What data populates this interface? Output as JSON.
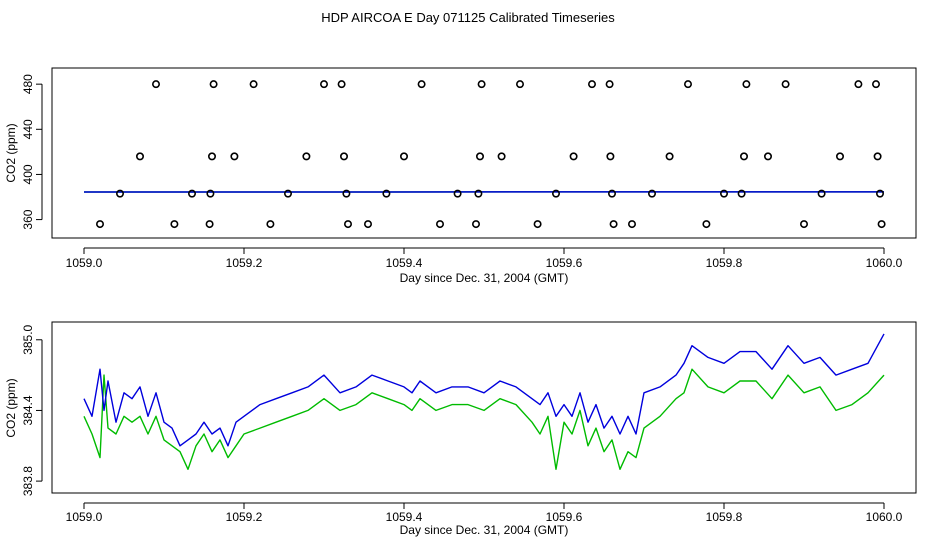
{
  "title": "HDP AIRCOA E  Day 071125  Calibrated Timeseries",
  "colors": {
    "line1": "#0000dd",
    "line2": "#00bb00",
    "points": "#000000"
  },
  "chart_data": [
    {
      "type": "scatter",
      "xlabel": "Day since Dec. 31, 2004 (GMT)",
      "ylabel": "CO2 (ppm)",
      "xlim": [
        1059.0,
        1060.0
      ],
      "ylim": [
        349,
        489
      ],
      "xticks": [
        "1059.0",
        "1059.2",
        "1059.4",
        "1059.6",
        "1059.8",
        "1060.0"
      ],
      "yticks": [
        "360",
        "400",
        "440",
        "480"
      ],
      "points": [
        [
          1059.02,
          356
        ],
        [
          1059.045,
          383
        ],
        [
          1059.07,
          416
        ],
        [
          1059.09,
          480
        ],
        [
          1059.113,
          356
        ],
        [
          1059.135,
          383
        ],
        [
          1059.157,
          356
        ],
        [
          1059.158,
          383
        ],
        [
          1059.16,
          416
        ],
        [
          1059.162,
          480
        ],
        [
          1059.188,
          416
        ],
        [
          1059.212,
          480
        ],
        [
          1059.233,
          356
        ],
        [
          1059.255,
          383
        ],
        [
          1059.278,
          416
        ],
        [
          1059.3,
          480
        ],
        [
          1059.322,
          480
        ],
        [
          1059.325,
          416
        ],
        [
          1059.328,
          383
        ],
        [
          1059.33,
          356
        ],
        [
          1059.355,
          356
        ],
        [
          1059.378,
          383
        ],
        [
          1059.4,
          416
        ],
        [
          1059.422,
          480
        ],
        [
          1059.445,
          356
        ],
        [
          1059.467,
          383
        ],
        [
          1059.49,
          356
        ],
        [
          1059.493,
          383
        ],
        [
          1059.495,
          416
        ],
        [
          1059.497,
          480
        ],
        [
          1059.522,
          416
        ],
        [
          1059.545,
          480
        ],
        [
          1059.567,
          356
        ],
        [
          1059.59,
          383
        ],
        [
          1059.612,
          416
        ],
        [
          1059.635,
          480
        ],
        [
          1059.657,
          480
        ],
        [
          1059.658,
          416
        ],
        [
          1059.66,
          383
        ],
        [
          1059.662,
          356
        ],
        [
          1059.685,
          356
        ],
        [
          1059.71,
          383
        ],
        [
          1059.732,
          416
        ],
        [
          1059.755,
          480
        ],
        [
          1059.778,
          356
        ],
        [
          1059.8,
          383
        ],
        [
          1059.822,
          383
        ],
        [
          1059.825,
          416
        ],
        [
          1059.828,
          480
        ],
        [
          1059.855,
          416
        ],
        [
          1059.877,
          480
        ],
        [
          1059.9,
          356
        ],
        [
          1059.922,
          383
        ],
        [
          1059.945,
          416
        ],
        [
          1059.968,
          480
        ],
        [
          1059.99,
          480
        ],
        [
          1059.992,
          416
        ],
        [
          1059.995,
          383
        ],
        [
          1059.997,
          356
        ]
      ],
      "series": [
        {
          "type": "line",
          "x": [
            1059.0,
            1060.0
          ],
          "y": [
            384.4,
            384.6
          ]
        }
      ]
    },
    {
      "type": "line",
      "xlabel": "Day since Dec. 31, 2004 (GMT)",
      "ylabel": "CO2 (ppm)",
      "xlim": [
        1059.0,
        1060.0
      ],
      "ylim": [
        383.75,
        385.1
      ],
      "xticks": [
        "1059.0",
        "1059.2",
        "1059.4",
        "1059.6",
        "1059.8",
        "1060.0"
      ],
      "yticks": [
        "383.8",
        "384.4",
        "385.0"
      ],
      "series": [
        {
          "x": [
            1059.0,
            1059.01,
            1059.02,
            1059.025,
            1059.03,
            1059.04,
            1059.05,
            1059.06,
            1059.07,
            1059.08,
            1059.09,
            1059.1,
            1059.11,
            1059.12,
            1059.13,
            1059.14,
            1059.15,
            1059.16,
            1059.17,
            1059.18,
            1059.19,
            1059.2,
            1059.22,
            1059.24,
            1059.26,
            1059.28,
            1059.3,
            1059.32,
            1059.34,
            1059.36,
            1059.38,
            1059.4,
            1059.41,
            1059.42,
            1059.44,
            1059.46,
            1059.48,
            1059.5,
            1059.52,
            1059.54,
            1059.56,
            1059.57,
            1059.58,
            1059.59,
            1059.6,
            1059.61,
            1059.62,
            1059.63,
            1059.64,
            1059.65,
            1059.66,
            1059.67,
            1059.68,
            1059.69,
            1059.7,
            1059.72,
            1059.74,
            1059.75,
            1059.76,
            1059.78,
            1059.8,
            1059.82,
            1059.84,
            1059.86,
            1059.88,
            1059.9,
            1059.92,
            1059.94,
            1059.96,
            1059.98,
            1060.0
          ],
          "y": [
            384.5,
            384.35,
            384.75,
            384.4,
            384.65,
            384.3,
            384.55,
            384.5,
            384.6,
            384.35,
            384.55,
            384.3,
            384.25,
            384.1,
            384.15,
            384.2,
            384.3,
            384.2,
            384.25,
            384.1,
            384.3,
            384.35,
            384.45,
            384.5,
            384.55,
            384.6,
            384.7,
            384.55,
            384.6,
            384.7,
            384.65,
            384.6,
            384.55,
            384.65,
            384.55,
            384.6,
            384.6,
            384.55,
            384.65,
            384.6,
            384.5,
            384.45,
            384.55,
            384.35,
            384.45,
            384.35,
            384.55,
            384.3,
            384.45,
            384.25,
            384.35,
            384.2,
            384.35,
            384.2,
            384.55,
            384.6,
            384.7,
            384.8,
            384.95,
            384.85,
            384.8,
            384.9,
            384.9,
            384.75,
            384.95,
            384.8,
            384.85,
            384.7,
            384.75,
            384.8,
            385.05
          ]
        },
        {
          "x": [
            1059.0,
            1059.01,
            1059.02,
            1059.025,
            1059.03,
            1059.04,
            1059.05,
            1059.06,
            1059.07,
            1059.08,
            1059.09,
            1059.1,
            1059.11,
            1059.12,
            1059.13,
            1059.14,
            1059.15,
            1059.16,
            1059.17,
            1059.18,
            1059.19,
            1059.2,
            1059.22,
            1059.24,
            1059.26,
            1059.28,
            1059.3,
            1059.32,
            1059.34,
            1059.36,
            1059.38,
            1059.4,
            1059.41,
            1059.42,
            1059.44,
            1059.46,
            1059.48,
            1059.5,
            1059.52,
            1059.54,
            1059.56,
            1059.57,
            1059.58,
            1059.59,
            1059.6,
            1059.61,
            1059.62,
            1059.63,
            1059.64,
            1059.65,
            1059.66,
            1059.67,
            1059.68,
            1059.69,
            1059.7,
            1059.72,
            1059.74,
            1059.75,
            1059.76,
            1059.78,
            1059.8,
            1059.82,
            1059.84,
            1059.86,
            1059.88,
            1059.9,
            1059.92,
            1059.94,
            1059.96,
            1059.98,
            1060.0
          ],
          "y": [
            384.35,
            384.2,
            384.0,
            384.7,
            384.25,
            384.2,
            384.35,
            384.3,
            384.35,
            384.2,
            384.35,
            384.15,
            384.1,
            384.05,
            383.9,
            384.1,
            384.2,
            384.05,
            384.15,
            384.0,
            384.1,
            384.2,
            384.25,
            384.3,
            384.35,
            384.4,
            384.5,
            384.4,
            384.45,
            384.55,
            384.5,
            384.45,
            384.4,
            384.5,
            384.4,
            384.45,
            384.45,
            384.4,
            384.5,
            384.45,
            384.3,
            384.2,
            384.35,
            383.9,
            384.3,
            384.2,
            384.4,
            384.1,
            384.25,
            384.05,
            384.15,
            383.9,
            384.05,
            384.0,
            384.25,
            384.35,
            384.5,
            384.55,
            384.75,
            384.6,
            384.55,
            384.65,
            384.65,
            384.5,
            384.7,
            384.55,
            384.6,
            384.4,
            384.45,
            384.55,
            384.7
          ]
        }
      ]
    }
  ]
}
